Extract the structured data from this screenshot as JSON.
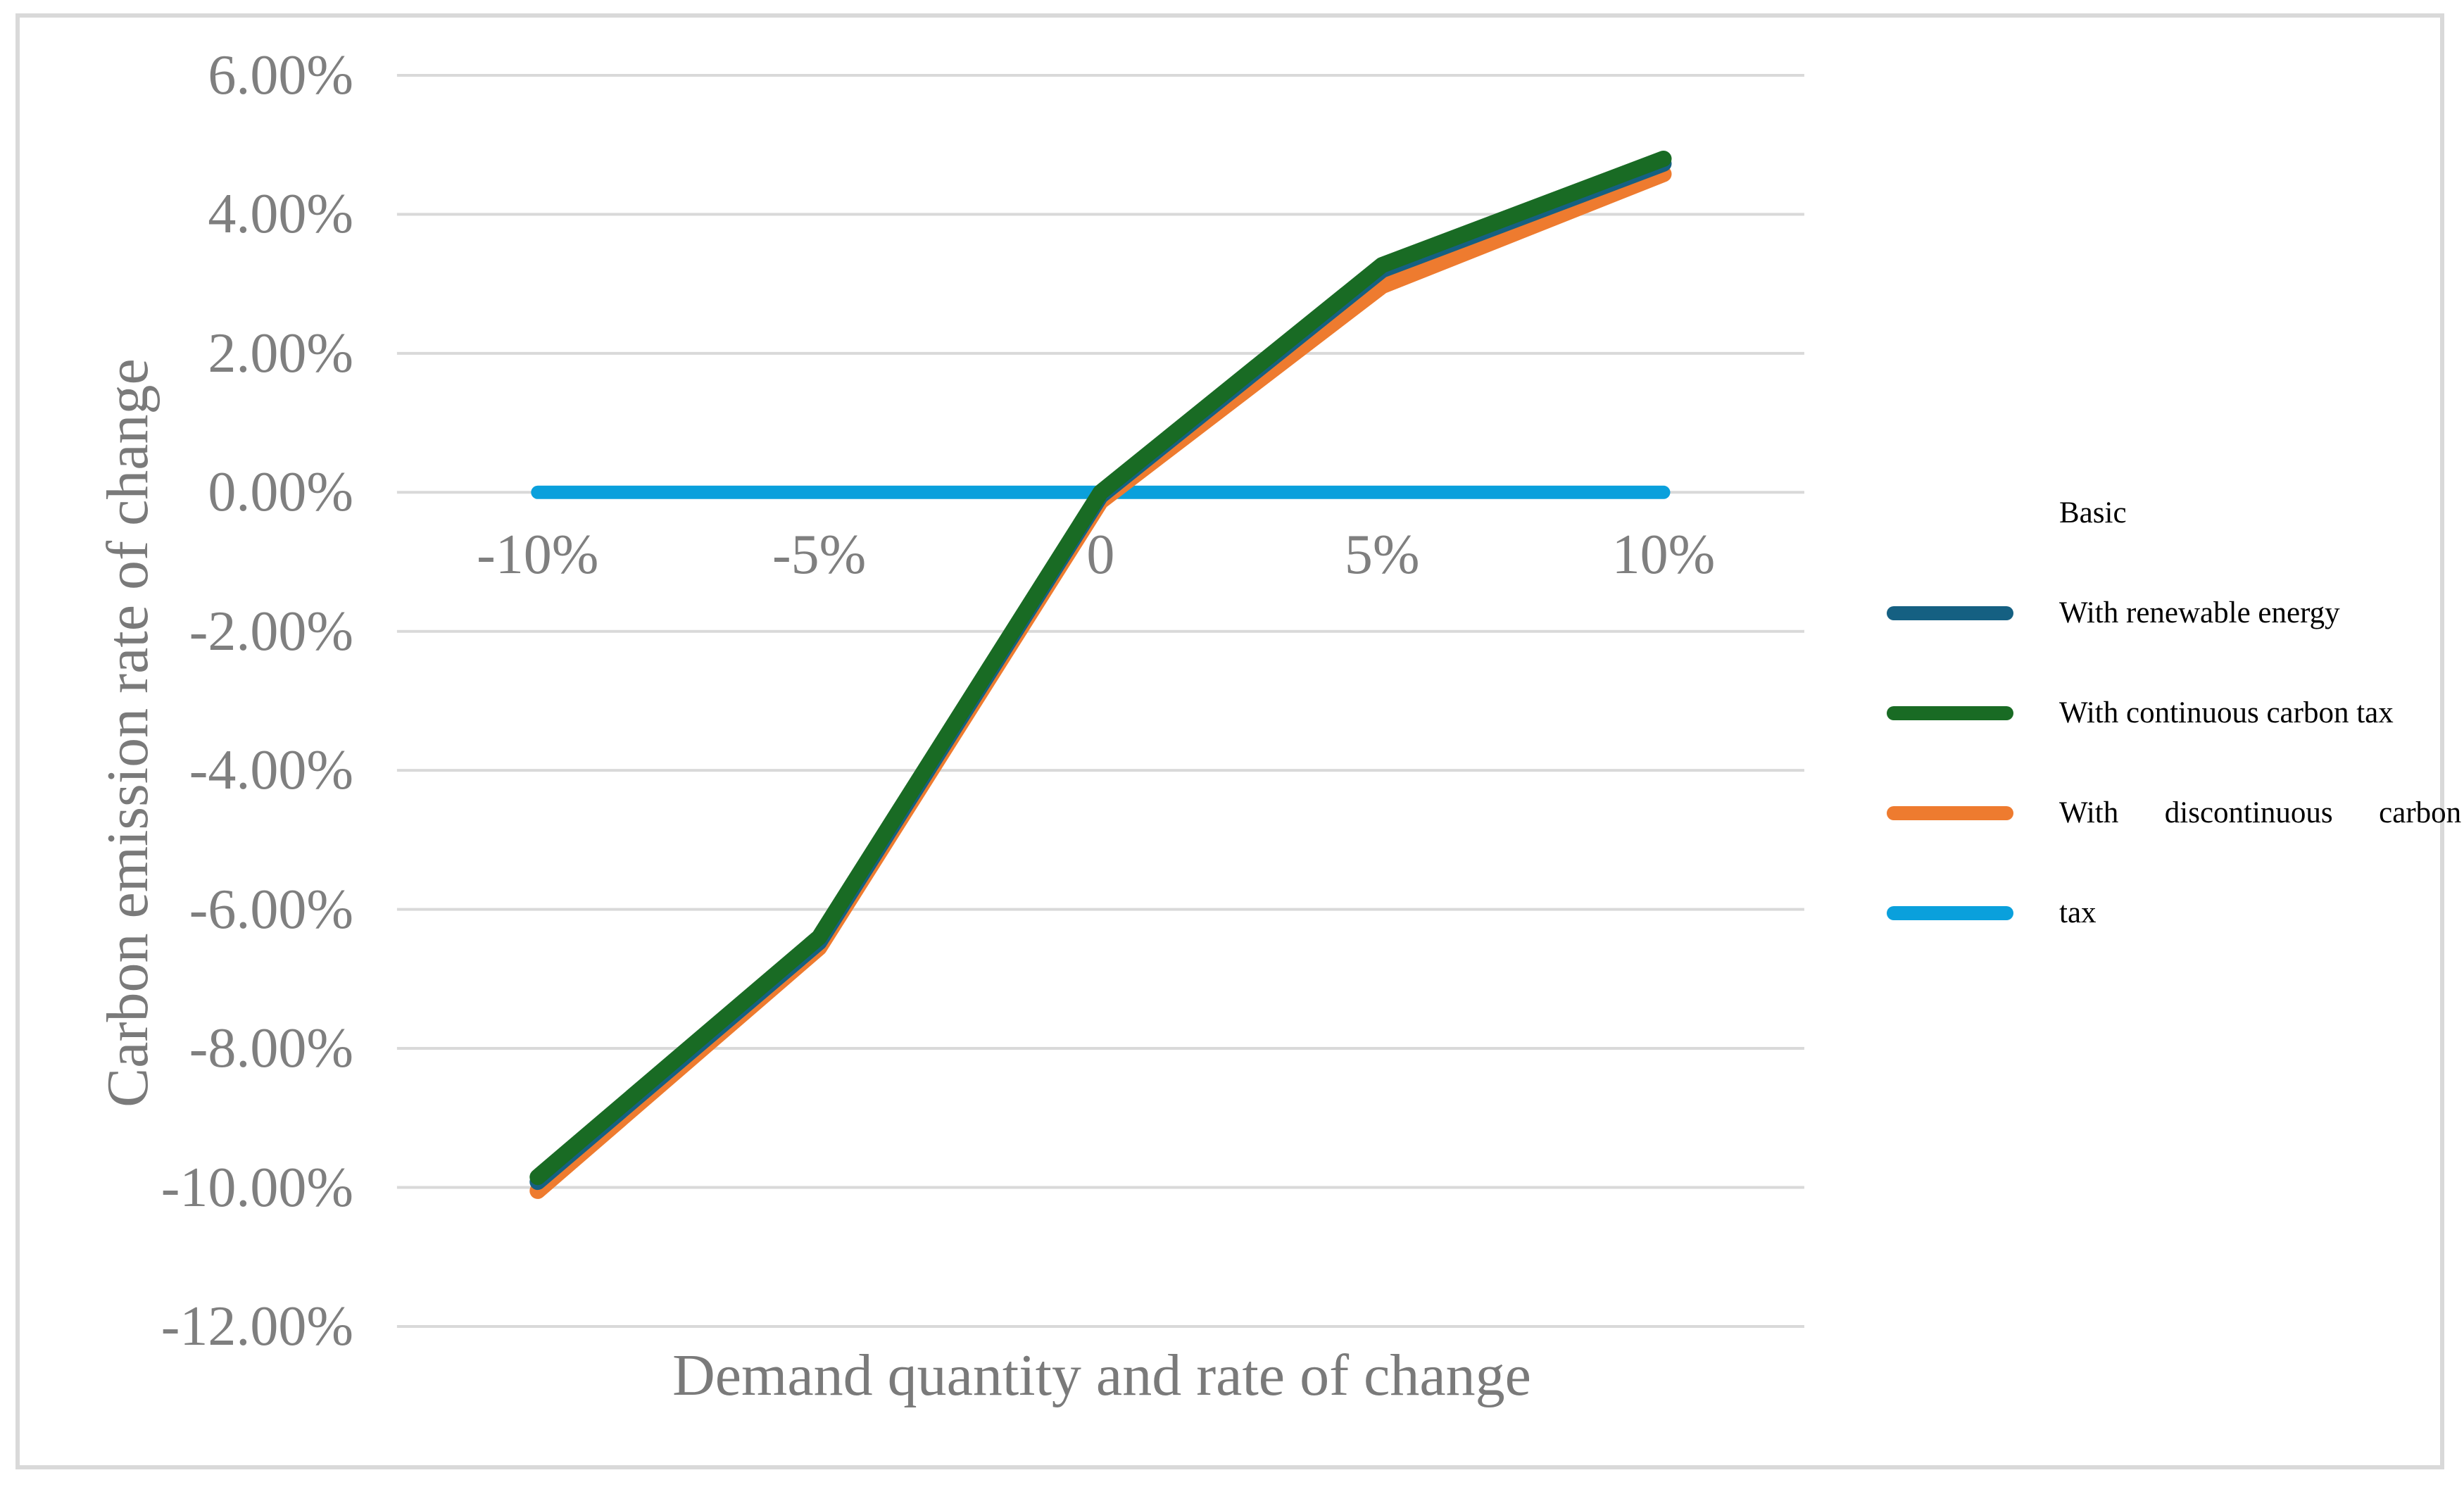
{
  "figure": {
    "background": "#ffffff",
    "border_color": "#d9d9d9"
  },
  "chart_data": {
    "type": "line",
    "title": "",
    "xlabel": "Demand quantity and rate of change",
    "ylabel": "Carbon emission rate of change",
    "xlim": [
      -12.5,
      12.5
    ],
    "ylim": [
      -12,
      6
    ],
    "grid": "horizontal-only",
    "grid_color": "#d9d9d9",
    "tick_label_color": "#7f7f7f",
    "legend_position": "right",
    "x_tick_values": [
      -10,
      -5,
      0,
      5,
      10
    ],
    "x_tick_labels": [
      "-10%",
      "-5%",
      "0",
      "5%",
      "10%"
    ],
    "y_tick_values": [
      6,
      4,
      2,
      0,
      -2,
      -4,
      -6,
      -8,
      -10,
      -12
    ],
    "y_tick_labels": [
      "6.00%",
      "4.00%",
      "2.00%",
      "0.00%",
      "-2.00%",
      "-4.00%",
      "-6.00%",
      "-8.00%",
      "-10.00%",
      "-12.00%"
    ],
    "x": [
      -10,
      -5,
      0,
      5,
      10
    ],
    "series": [
      {
        "name": "Basic",
        "color": "#0aa0dc",
        "stroke_width": 19,
        "x": [
          -10,
          10
        ],
        "values": [
          0,
          0
        ],
        "note": "flat light-blue line at 0.00% across the full x range"
      },
      {
        "name": "With renewable energy",
        "color": "#156082",
        "stroke_width": 23,
        "x": [
          -10,
          -5,
          0,
          5,
          10
        ],
        "values": [
          -9.92,
          -6.47,
          -0.05,
          3.2,
          4.73
        ],
        "note": "almost entirely hidden behind the green line; visible as a thin sliver"
      },
      {
        "name": "With continuous carbon tax",
        "color": "#196b24",
        "stroke_width": 23,
        "x": [
          -10,
          -5,
          0,
          5,
          10
        ],
        "values": [
          -9.85,
          -6.4,
          0,
          3.27,
          4.8
        ]
      },
      {
        "name": "With discontinuous carbon tax",
        "color": "#ee7b2f",
        "stroke_width": 23,
        "x": [
          -10,
          -5,
          0,
          5,
          10
        ],
        "values": [
          -10.05,
          -6.55,
          -0.13,
          2.97,
          4.58
        ]
      }
    ]
  },
  "legend": {
    "rows": [
      {
        "label": "Basic",
        "swatch": null
      },
      {
        "label": "With renewable energy",
        "swatch": "#156082"
      },
      {
        "label": "With continuous carbon tax",
        "swatch": "#196b24"
      },
      {
        "label": "With  discontinuous  carbon",
        "swatch": "#ee7b2f",
        "justified": true
      },
      {
        "label": "tax",
        "swatch": "#0aa0dc"
      }
    ]
  }
}
